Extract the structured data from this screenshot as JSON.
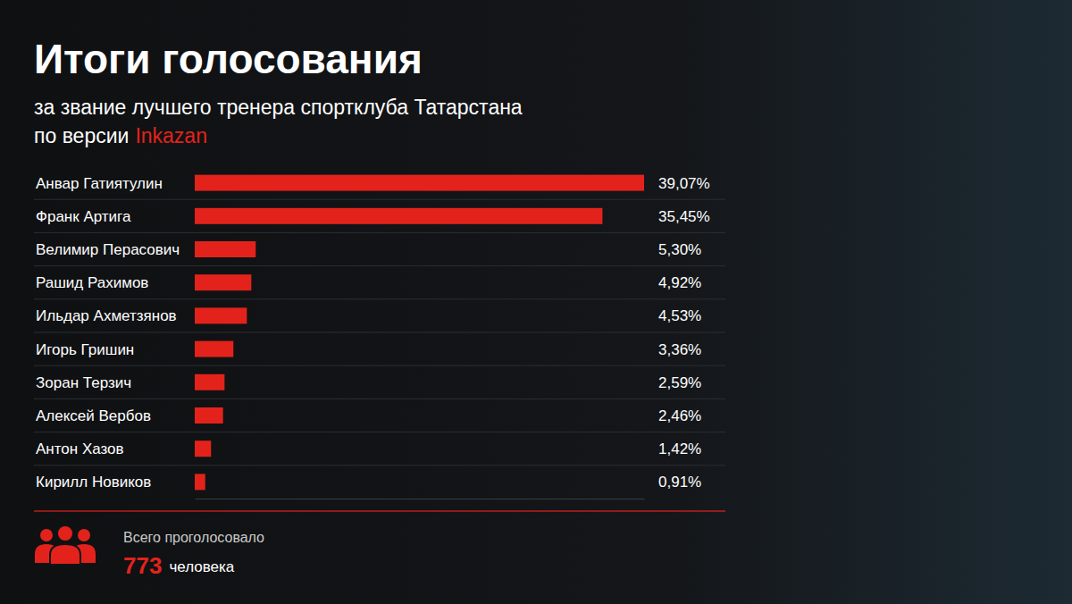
{
  "chart_data": {
    "type": "bar",
    "orientation": "horizontal",
    "title": "Итоги голосования",
    "subtitle": [
      "за звание лучшего тренера спортклуба Татарстана",
      "по версии"
    ],
    "subtitle_highlight": "Inkazan",
    "categories": [
      "Анвар Гатиятулин",
      "Франк Артига",
      "Велимир Перасович",
      "Рашид Рахимов",
      "Ильдар Ахметзянов",
      "Игорь Гришин",
      "Зоран Терзич",
      "Алексей Вербов",
      "Антон Хазов",
      "Кирилл Новиков"
    ],
    "values": [
      39.07,
      35.45,
      5.3,
      4.92,
      4.53,
      3.36,
      2.59,
      2.46,
      1.42,
      0.91
    ],
    "value_labels": [
      "39,07%",
      "35,45%",
      "5,30%",
      "4,92%",
      "4,53%",
      "3,36%",
      "2,59%",
      "2,46%",
      "1,42%",
      "0,91%"
    ],
    "data_labels": true,
    "color": "#e3231b",
    "xlim": [
      0,
      39.07
    ],
    "xticks": [],
    "tick_labels": false,
    "grid": false,
    "footer": {
      "label": "Всего проголосовало",
      "total": 773,
      "unit": "человека"
    }
  }
}
